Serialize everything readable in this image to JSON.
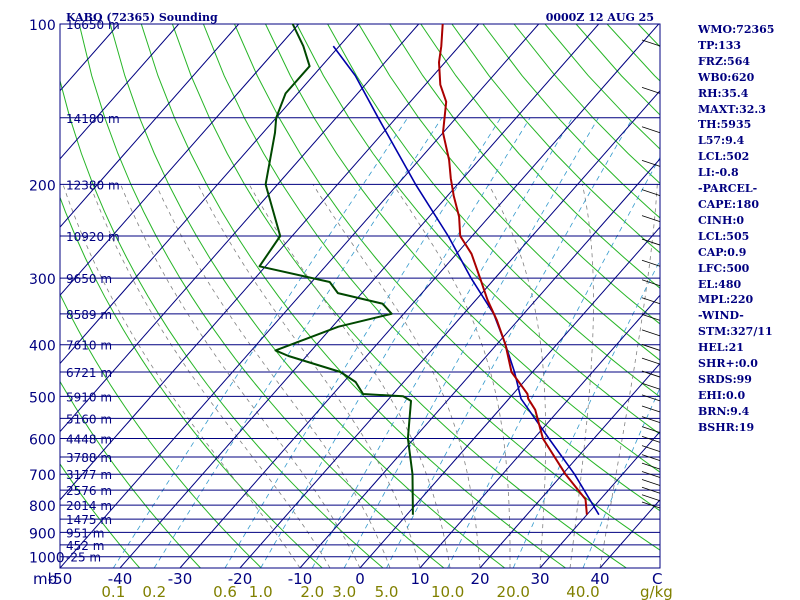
{
  "chart_data": {
    "type": "skew-t log-p sounding",
    "title": "KABQ (72365) Sounding",
    "time": "0000Z 12 AUG 25",
    "x_axis": {
      "unit_label": "C",
      "temperature_ticks": [
        -50,
        -40,
        -30,
        -20,
        -10,
        0,
        10,
        20,
        30,
        40
      ],
      "mixing_ratio_unit": "g/kg",
      "mixing_ratio_labels": [
        0.1,
        0.2,
        0.6,
        1.0,
        2.0,
        3.0,
        5.0,
        10.0,
        20.0,
        40.0
      ]
    },
    "y_axis": {
      "unit_label": "mb",
      "pressure_labels": [
        100,
        200,
        300,
        400,
        500,
        600,
        700,
        800,
        900,
        1000
      ],
      "pressure_range": [
        1050,
        100
      ]
    },
    "height_labels": [
      {
        "p": 100,
        "text": "16650 m"
      },
      {
        "p": 150,
        "text": "14180 m"
      },
      {
        "p": 200,
        "text": "12380 m"
      },
      {
        "p": 250,
        "text": "10920 m"
      },
      {
        "p": 300,
        "text": "9650 m"
      },
      {
        "p": 350,
        "text": "8589 m"
      },
      {
        "p": 400,
        "text": "7610 m"
      },
      {
        "p": 450,
        "text": "6721 m"
      },
      {
        "p": 500,
        "text": "5910 m"
      },
      {
        "p": 550,
        "text": "5160 m"
      },
      {
        "p": 600,
        "text": "4448 m"
      },
      {
        "p": 650,
        "text": "3788 m"
      },
      {
        "p": 700,
        "text": "3177 m"
      },
      {
        "p": 750,
        "text": "2576 m"
      },
      {
        "p": 800,
        "text": "2014 m"
      },
      {
        "p": 850,
        "text": "1475 m"
      },
      {
        "p": 900,
        "text": "951 m"
      },
      {
        "p": 950,
        "text": "452 m"
      },
      {
        "p": 1000,
        "text": "-25 m"
      }
    ],
    "temperature_profile": [
      {
        "p": 834,
        "t": 30
      },
      {
        "p": 780,
        "t": 27.5
      },
      {
        "p": 700,
        "t": 20.5
      },
      {
        "p": 600,
        "t": 11.5
      },
      {
        "p": 530,
        "t": 6
      },
      {
        "p": 505,
        "t": 3.2
      },
      {
        "p": 495,
        "t": 2.4
      },
      {
        "p": 480,
        "t": 0.5
      },
      {
        "p": 450,
        "t": -3.5
      },
      {
        "p": 400,
        "t": -8.5
      },
      {
        "p": 360,
        "t": -13.5
      },
      {
        "p": 330,
        "t": -18
      },
      {
        "p": 300,
        "t": -22.5
      },
      {
        "p": 270,
        "t": -27.5
      },
      {
        "p": 250,
        "t": -32
      },
      {
        "p": 230,
        "t": -35
      },
      {
        "p": 210,
        "t": -39
      },
      {
        "p": 195,
        "t": -42
      },
      {
        "p": 180,
        "t": -45
      },
      {
        "p": 160,
        "t": -50
      },
      {
        "p": 140,
        "t": -54
      },
      {
        "p": 130,
        "t": -57.5
      },
      {
        "p": 118,
        "t": -61
      },
      {
        "p": 110,
        "t": -63
      },
      {
        "p": 100,
        "t": -66
      }
    ],
    "dewpoint_profile": [
      {
        "p": 834,
        "td": 1
      },
      {
        "p": 700,
        "td": -5
      },
      {
        "p": 600,
        "td": -11
      },
      {
        "p": 510,
        "td": -16
      },
      {
        "p": 500,
        "td": -18
      },
      {
        "p": 495,
        "td": -25
      },
      {
        "p": 470,
        "td": -28
      },
      {
        "p": 450,
        "td": -32
      },
      {
        "p": 420,
        "td": -43
      },
      {
        "p": 410,
        "td": -46
      },
      {
        "p": 370,
        "td": -39
      },
      {
        "p": 350,
        "td": -32
      },
      {
        "p": 335,
        "td": -35
      },
      {
        "p": 320,
        "td": -44
      },
      {
        "p": 305,
        "td": -47
      },
      {
        "p": 285,
        "td": -61
      },
      {
        "p": 250,
        "td": -62
      },
      {
        "p": 200,
        "td": -72
      },
      {
        "p": 160,
        "td": -78
      },
      {
        "p": 150,
        "td": -80
      },
      {
        "p": 135,
        "td": -82
      },
      {
        "p": 120,
        "td": -82
      },
      {
        "p": 110,
        "td": -86
      },
      {
        "p": 100,
        "td": -91
      }
    ],
    "parcel_profile": [
      {
        "p": 834,
        "t": 32
      },
      {
        "p": 700,
        "t": 22
      },
      {
        "p": 600,
        "t": 12.5
      },
      {
        "p": 505,
        "t": 2
      },
      {
        "p": 450,
        "t": -3
      },
      {
        "p": 400,
        "t": -8.5
      },
      {
        "p": 350,
        "t": -15
      },
      {
        "p": 300,
        "t": -24
      },
      {
        "p": 250,
        "t": -34
      },
      {
        "p": 200,
        "t": -47
      },
      {
        "p": 150,
        "t": -63
      },
      {
        "p": 125,
        "t": -73
      },
      {
        "p": 110,
        "t": -81
      }
    ],
    "series_colors": {
      "temperature": "#aa0000",
      "dewpoint": "#004800",
      "parcel": "#0000aa",
      "isobars": "#000080",
      "isotherms": "#000080",
      "dry_adiabats": "#00a800",
      "moist_adiabats": "#808080",
      "mixing_ratio": "#3399cc"
    },
    "grid": true
  },
  "indices": [
    "WMO:72365",
    "TP:133",
    "FRZ:564",
    "WB0:620",
    "RH:35.4",
    "MAXT:32.3",
    "TH:5935",
    "L57:9.4",
    "LCL:502",
    "LI:-0.8",
    "-PARCEL-",
    "CAPE:180",
    "CINH:0",
    "LCL:505",
    "CAP:0.9",
    "LFC:500",
    "EL:480",
    "MPL:220",
    "-WIND-",
    "STM:327/11",
    "HEL:21",
    "SHR+:0.0",
    "SRDS:99",
    "EHI:0.0",
    "BRN:9.4",
    "BSHR:19"
  ]
}
